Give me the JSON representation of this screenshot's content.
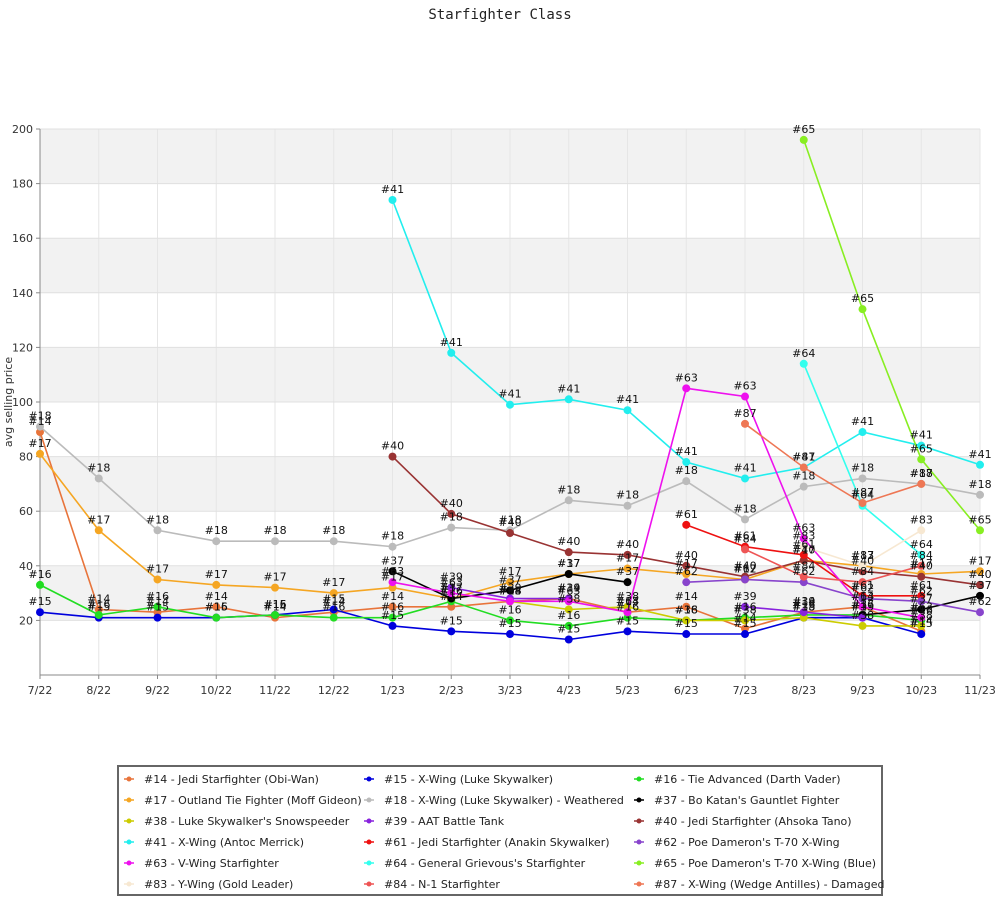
{
  "chart_data": {
    "type": "line",
    "title": "Starfighter Class",
    "xlabel": "",
    "ylabel": "avg selling price",
    "ylim": [
      0,
      200
    ],
    "yticks": [
      20,
      40,
      60,
      80,
      100,
      120,
      140,
      160,
      180,
      200
    ],
    "categories": [
      "7/22",
      "8/22",
      "9/22",
      "10/22",
      "11/22",
      "12/22",
      "1/23",
      "2/23",
      "3/23",
      "4/23",
      "5/23",
      "6/23",
      "7/23",
      "8/23",
      "9/23",
      "10/23",
      "11/23"
    ],
    "grid": "horizontal bands",
    "legend_position": "bottom",
    "series": [
      {
        "name": "#14 - Jedi Starfighter (Obi-Wan)",
        "label": "#14",
        "color": "#e8743b",
        "values": [
          89,
          24,
          23,
          25,
          21,
          23,
          25,
          25,
          27,
          28,
          23,
          25,
          17,
          23,
          25,
          16,
          null
        ]
      },
      {
        "name": "#15 - X-Wing (Luke Skywalker)",
        "label": "#15",
        "color": "#0000dd",
        "values": [
          23,
          21,
          21,
          21,
          22,
          24,
          18,
          16,
          15,
          13,
          16,
          15,
          15,
          21,
          21,
          15,
          null
        ]
      },
      {
        "name": "#16 - Tie Advanced (Darth Vader)",
        "label": "#16",
        "color": "#22dd22",
        "values": [
          33,
          22,
          25,
          21,
          22,
          21,
          21,
          27,
          20,
          18,
          21,
          20,
          21,
          22,
          22,
          20,
          null
        ]
      },
      {
        "name": "#17 - Outland Tie Fighter (Moff Gideon)",
        "label": "#17",
        "color": "#f5a623",
        "values": [
          81,
          53,
          35,
          33,
          32,
          30,
          32,
          28,
          34,
          37,
          39,
          37,
          35,
          42,
          40,
          37,
          38
        ]
      },
      {
        "name": "#18 - X-Wing (Luke Skywalker) - Weathered",
        "label": "#18",
        "color": "#bbbbbb",
        "values": [
          91,
          72,
          53,
          49,
          49,
          49,
          47,
          54,
          53,
          64,
          62,
          71,
          57,
          69,
          72,
          70,
          66
        ]
      },
      {
        "name": "#37 - Bo Katan's Gauntlet Fighter",
        "label": "#37",
        "color": "#000000",
        "values": [
          null,
          null,
          null,
          null,
          null,
          null,
          38,
          28,
          31,
          37,
          34,
          null,
          null,
          null,
          22,
          24,
          29
        ]
      },
      {
        "name": "#38 - Luke Skywalker's Snowspeeder",
        "label": "#38",
        "color": "#cccc00",
        "values": [
          null,
          null,
          null,
          null,
          null,
          null,
          null,
          null,
          27,
          24,
          25,
          20,
          20,
          21,
          18,
          18,
          null
        ]
      },
      {
        "name": "#39 - AAT Battle Tank",
        "label": "#39",
        "color": "#8822dd",
        "values": [
          null,
          null,
          null,
          null,
          null,
          null,
          null,
          32,
          28,
          28,
          null,
          null,
          25,
          23,
          21,
          null,
          null
        ]
      },
      {
        "name": "#40 - Jedi Starfighter (Ahsoka Tano)",
        "label": "#40",
        "color": "#993333",
        "values": [
          null,
          null,
          null,
          null,
          null,
          null,
          80,
          59,
          52,
          45,
          44,
          40,
          36,
          42,
          38,
          36,
          33
        ]
      },
      {
        "name": "#41 - X-Wing (Antoc Merrick)",
        "label": "#41",
        "color": "#22eeee",
        "values": [
          null,
          null,
          null,
          null,
          null,
          null,
          174,
          118,
          99,
          101,
          97,
          78,
          72,
          76,
          89,
          84,
          77
        ]
      },
      {
        "name": "#61 - Jedi Starfighter (Anakin Skywalker)",
        "label": "#61",
        "color": "#ee1111",
        "values": [
          null,
          null,
          null,
          null,
          null,
          null,
          null,
          null,
          null,
          null,
          null,
          55,
          47,
          44,
          29,
          29,
          null
        ]
      },
      {
        "name": "#62 - Poe Dameron's T-70 X-Wing",
        "label": "#62",
        "color": "#8844cc",
        "values": [
          null,
          null,
          null,
          null,
          null,
          null,
          null,
          null,
          null,
          null,
          null,
          34,
          35,
          34,
          28,
          27,
          23
        ]
      },
      {
        "name": "#63 - V-Wing Starfighter",
        "label": "#63",
        "color": "#ee11ee",
        "values": [
          null,
          null,
          null,
          null,
          null,
          null,
          34,
          30,
          27,
          27,
          23,
          105,
          102,
          50,
          25,
          21,
          null
        ]
      },
      {
        "name": "#64 - General Grievous's Starfighter",
        "label": "#64",
        "color": "#33ffee",
        "values": [
          null,
          null,
          null,
          null,
          null,
          null,
          null,
          null,
          null,
          null,
          null,
          null,
          null,
          114,
          62,
          44,
          null
        ]
      },
      {
        "name": "#65 - Poe Dameron's T-70 X-Wing (Blue)",
        "label": "#65",
        "color": "#88ee22",
        "values": [
          null,
          null,
          null,
          null,
          null,
          null,
          null,
          null,
          null,
          null,
          null,
          null,
          null,
          196,
          134,
          79,
          53
        ]
      },
      {
        "name": "#83 - Y-Wing (Gold Leader)",
        "label": "#83",
        "color": "#f7e8d2",
        "values": [
          null,
          null,
          null,
          null,
          null,
          null,
          null,
          null,
          null,
          null,
          null,
          null,
          null,
          47,
          40,
          53,
          null
        ]
      },
      {
        "name": "#84 - N-1 Starfighter",
        "label": "#84",
        "color": "#ee5555",
        "values": [
          null,
          null,
          null,
          null,
          null,
          null,
          null,
          null,
          null,
          null,
          null,
          null,
          46,
          36,
          34,
          40,
          null
        ]
      },
      {
        "name": "#87 - X-Wing (Wedge Antilles) - Damaged",
        "label": "#87",
        "color": "#ee7755",
        "values": [
          null,
          null,
          null,
          null,
          null,
          null,
          null,
          null,
          null,
          null,
          null,
          null,
          92,
          76,
          63,
          70,
          null
        ]
      }
    ]
  }
}
